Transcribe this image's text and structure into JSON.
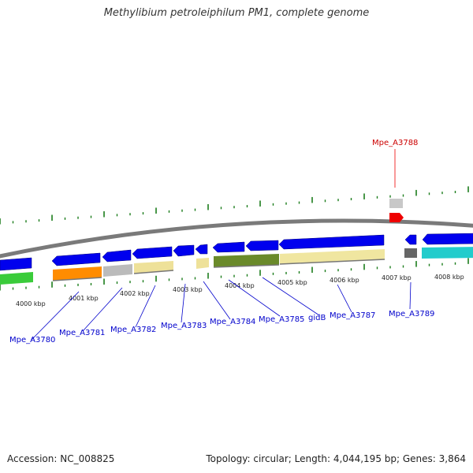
{
  "title": "Methylibium petroleiphilum PM1, complete genome",
  "footer": {
    "accession": "Accession: NC_008825",
    "summary": "Topology: circular; Length: 4,044,195 bp; Genes: 3,864"
  },
  "colors": {
    "backbone": "#7a7a7a",
    "forward_gene": "#0000ee",
    "tick": "#1c7d1c",
    "label_line": "#0000cc",
    "highlight": "#ee0000"
  },
  "scale_labels": [
    "4000 kbp",
    "4001 kbp",
    "4002 kbp",
    "4003 kbp",
    "4004 kbp",
    "4005 kbp",
    "4006 kbp",
    "4007 kbp",
    "4008 kbp"
  ],
  "gene_labels": [
    {
      "name": "Mpe_A3780",
      "highlight": false
    },
    {
      "name": "Mpe_A3781",
      "highlight": false
    },
    {
      "name": "Mpe_A3782",
      "highlight": false
    },
    {
      "name": "Mpe_A3783",
      "highlight": false
    },
    {
      "name": "Mpe_A3784",
      "highlight": false
    },
    {
      "name": "Mpe_A3785",
      "highlight": false
    },
    {
      "name": "gidB",
      "highlight": false
    },
    {
      "name": "Mpe_A3787",
      "highlight": false
    },
    {
      "name": "Mpe_A3789",
      "highlight": false
    },
    {
      "name": "Mpe_A3788",
      "highlight": true
    }
  ]
}
